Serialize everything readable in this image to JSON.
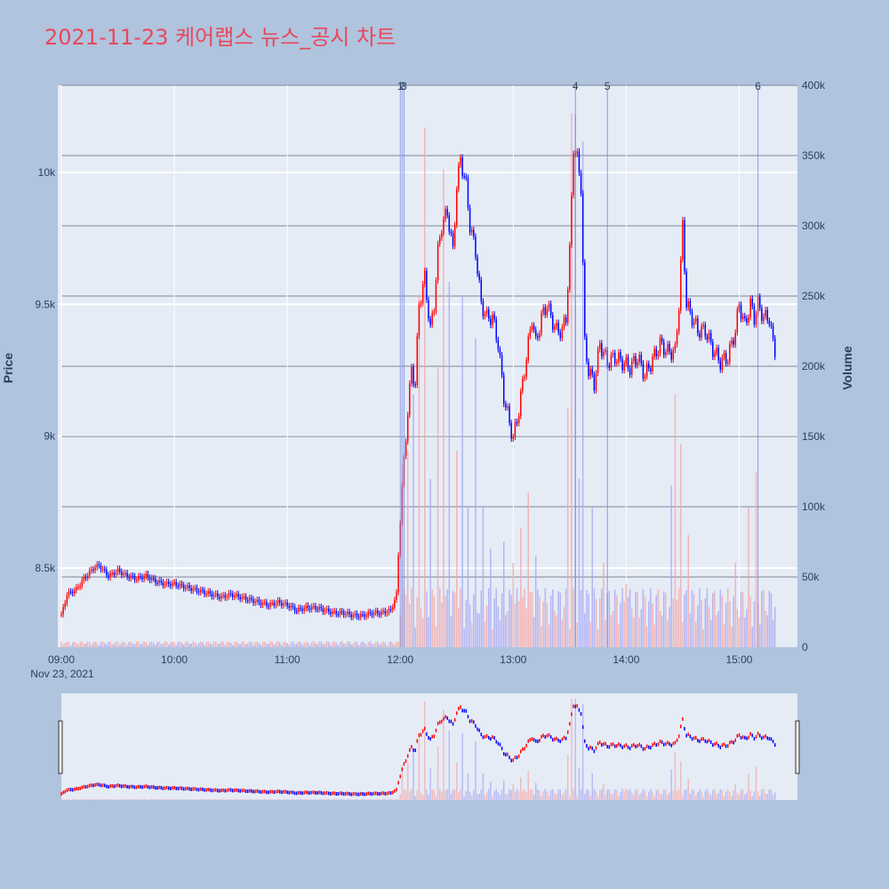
{
  "title": "2021-11-23 케어랩스 뉴스_공시 차트",
  "colors": {
    "up": "#ff0000",
    "down": "#0000ff",
    "up_volume": "#f4a6a6",
    "down_volume": "#a6a6f4",
    "page_bg": "#b0c4de",
    "plot_bg": "#e5ecf6",
    "news_line": "#6b7fe0",
    "title": "#e8485c"
  },
  "chart_data": {
    "type": "candlestick",
    "title": "2021-11-23 케어랩스 뉴스_공시 차트",
    "ylabel": "Price",
    "y2label": "Volume",
    "ylim": [
      8200,
      10330
    ],
    "y2lim": [
      0,
      400000
    ],
    "xlim": [
      "09:00",
      "15:30"
    ],
    "grid": true,
    "x_ticks": [
      "09:00",
      "10:00",
      "11:00",
      "12:00",
      "13:00",
      "14:00",
      "15:00"
    ],
    "x_date_label": "Nov 23, 2021",
    "y_ticks": [
      {
        "value": 8500,
        "label": "8.5k"
      },
      {
        "value": 9000,
        "label": "9k"
      },
      {
        "value": 9500,
        "label": "9.5k"
      },
      {
        "value": 10000,
        "label": "10k"
      }
    ],
    "y2_ticks": [
      {
        "value": 0,
        "label": "0"
      },
      {
        "value": 50000,
        "label": "50k"
      },
      {
        "value": 100000,
        "label": "100k"
      },
      {
        "value": 150000,
        "label": "150k"
      },
      {
        "value": 200000,
        "label": "200k"
      },
      {
        "value": 250000,
        "label": "250k"
      },
      {
        "value": 300000,
        "label": "300k"
      },
      {
        "value": 350000,
        "label": "350k"
      },
      {
        "value": 400000,
        "label": "400k"
      }
    ],
    "news_markers": [
      {
        "label": "1",
        "time": "12:00"
      },
      {
        "label": "2",
        "time": "12:00"
      },
      {
        "label": "3",
        "time": "12:02"
      },
      {
        "label": "4",
        "time": "13:33"
      },
      {
        "label": "5",
        "time": "13:50"
      },
      {
        "label": "6",
        "time": "15:10"
      }
    ],
    "price_path": [
      [
        "09:00",
        8320
      ],
      [
        "09:03",
        8400
      ],
      [
        "09:08",
        8420
      ],
      [
        "09:12",
        8460
      ],
      [
        "09:17",
        8500
      ],
      [
        "09:20",
        8510
      ],
      [
        "09:25",
        8470
      ],
      [
        "09:30",
        8490
      ],
      [
        "09:35",
        8470
      ],
      [
        "09:40",
        8460
      ],
      [
        "09:45",
        8470
      ],
      [
        "09:50",
        8450
      ],
      [
        "09:55",
        8440
      ],
      [
        "10:00",
        8440
      ],
      [
        "10:05",
        8430
      ],
      [
        "10:10",
        8420
      ],
      [
        "10:15",
        8410
      ],
      [
        "10:20",
        8400
      ],
      [
        "10:25",
        8390
      ],
      [
        "10:30",
        8400
      ],
      [
        "10:35",
        8390
      ],
      [
        "10:40",
        8380
      ],
      [
        "10:45",
        8370
      ],
      [
        "10:50",
        8360
      ],
      [
        "10:55",
        8370
      ],
      [
        "11:00",
        8360
      ],
      [
        "11:05",
        8340
      ],
      [
        "11:10",
        8350
      ],
      [
        "11:15",
        8350
      ],
      [
        "11:20",
        8340
      ],
      [
        "11:25",
        8330
      ],
      [
        "11:30",
        8330
      ],
      [
        "11:35",
        8320
      ],
      [
        "11:40",
        8320
      ],
      [
        "11:45",
        8330
      ],
      [
        "11:50",
        8330
      ],
      [
        "11:55",
        8340
      ],
      [
        "11:58",
        8400
      ],
      [
        "12:00",
        8700
      ],
      [
        "12:02",
        8900
      ],
      [
        "12:04",
        9100
      ],
      [
        "12:06",
        9250
      ],
      [
        "12:08",
        9200
      ],
      [
        "12:10",
        9500
      ],
      [
        "12:13",
        9600
      ],
      [
        "12:16",
        9400
      ],
      [
        "12:18",
        9500
      ],
      [
        "12:20",
        9700
      ],
      [
        "12:22",
        9800
      ],
      [
        "12:25",
        9850
      ],
      [
        "12:28",
        9700
      ],
      [
        "12:30",
        9950
      ],
      [
        "12:32",
        10050
      ],
      [
        "12:35",
        9950
      ],
      [
        "12:37",
        9800
      ],
      [
        "12:40",
        9700
      ],
      [
        "12:43",
        9500
      ],
      [
        "12:46",
        9450
      ],
      [
        "12:49",
        9450
      ],
      [
        "12:52",
        9350
      ],
      [
        "12:55",
        9150
      ],
      [
        "12:58",
        9050
      ],
      [
        "13:00",
        8990
      ],
      [
        "13:03",
        9100
      ],
      [
        "13:06",
        9250
      ],
      [
        "13:08",
        9350
      ],
      [
        "13:10",
        9450
      ],
      [
        "13:12",
        9350
      ],
      [
        "13:15",
        9450
      ],
      [
        "13:18",
        9500
      ],
      [
        "13:20",
        9450
      ],
      [
        "13:23",
        9400
      ],
      [
        "13:26",
        9400
      ],
      [
        "13:28",
        9450
      ],
      [
        "13:30",
        9700
      ],
      [
        "13:32",
        10100
      ],
      [
        "13:34",
        10050
      ],
      [
        "13:36",
        9950
      ],
      [
        "13:38",
        9350
      ],
      [
        "13:40",
        9250
      ],
      [
        "13:43",
        9200
      ],
      [
        "13:46",
        9350
      ],
      [
        "13:50",
        9280
      ],
      [
        "13:54",
        9300
      ],
      [
        "13:58",
        9280
      ],
      [
        "14:02",
        9260
      ],
      [
        "14:06",
        9300
      ],
      [
        "14:10",
        9230
      ],
      [
        "14:14",
        9290
      ],
      [
        "14:18",
        9350
      ],
      [
        "14:22",
        9320
      ],
      [
        "14:26",
        9320
      ],
      [
        "14:28",
        9500
      ],
      [
        "14:30",
        9800
      ],
      [
        "14:32",
        9500
      ],
      [
        "14:35",
        9450
      ],
      [
        "14:38",
        9400
      ],
      [
        "14:42",
        9400
      ],
      [
        "14:46",
        9330
      ],
      [
        "14:50",
        9280
      ],
      [
        "14:54",
        9300
      ],
      [
        "14:58",
        9400
      ],
      [
        "15:00",
        9500
      ],
      [
        "15:03",
        9420
      ],
      [
        "15:06",
        9500
      ],
      [
        "15:08",
        9450
      ],
      [
        "15:10",
        9500
      ],
      [
        "15:13",
        9450
      ],
      [
        "15:16",
        9450
      ],
      [
        "15:18",
        9350
      ],
      [
        "15:19",
        9300
      ]
    ],
    "volume_spikes": [
      [
        "12:01",
        130000
      ],
      [
        "12:04",
        140000
      ],
      [
        "12:07",
        180000
      ],
      [
        "12:10",
        250000
      ],
      [
        "12:13",
        370000
      ],
      [
        "12:16",
        120000
      ],
      [
        "12:20",
        200000
      ],
      [
        "12:23",
        340000
      ],
      [
        "12:26",
        260000
      ],
      [
        "12:30",
        140000
      ],
      [
        "12:33",
        250000
      ],
      [
        "12:36",
        100000
      ],
      [
        "12:40",
        220000
      ],
      [
        "12:44",
        100000
      ],
      [
        "12:48",
        70000
      ],
      [
        "12:55",
        75000
      ],
      [
        "13:00",
        60000
      ],
      [
        "13:04",
        85000
      ],
      [
        "13:08",
        110000
      ],
      [
        "13:12",
        65000
      ],
      [
        "13:29",
        170000
      ],
      [
        "13:31",
        380000
      ],
      [
        "13:33",
        380000
      ],
      [
        "13:35",
        120000
      ],
      [
        "13:37",
        360000
      ],
      [
        "13:42",
        100000
      ],
      [
        "13:48",
        60000
      ],
      [
        "14:00",
        45000
      ],
      [
        "14:24",
        115000
      ],
      [
        "14:26",
        180000
      ],
      [
        "14:29",
        145000
      ],
      [
        "14:33",
        80000
      ],
      [
        "14:58",
        60000
      ],
      [
        "15:05",
        100000
      ],
      [
        "15:09",
        125000
      ],
      [
        "15:12",
        40000
      ],
      [
        "15:20",
        40000
      ],
      [
        "15:28",
        80000
      ]
    ]
  }
}
